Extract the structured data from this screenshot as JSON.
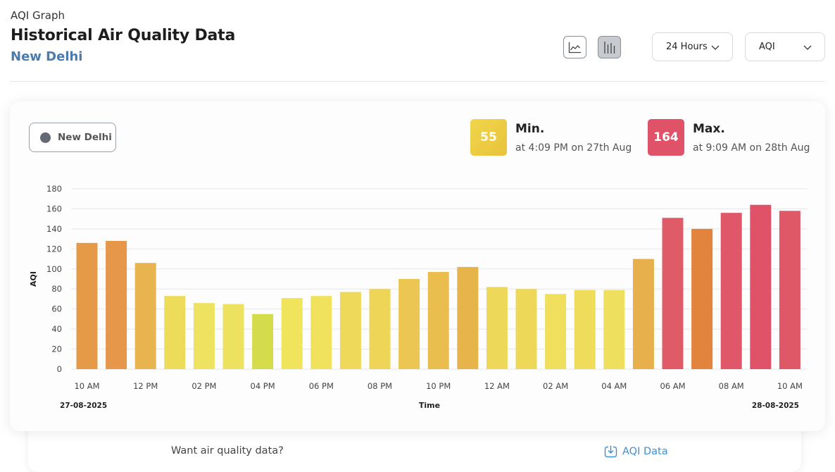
{
  "header": {
    "eyebrow": "AQI Graph",
    "title": "Historical Air Quality Data",
    "city": "New Delhi"
  },
  "toolbar": {
    "chart_types": [
      {
        "icon": "line-chart-icon",
        "active": false
      },
      {
        "icon": "bar-chart-icon",
        "active": true
      }
    ],
    "range_select": "24 Hours",
    "metric_select": "AQI"
  },
  "legend": {
    "label": "New Delhi",
    "color": "#636a73"
  },
  "stats": {
    "min": {
      "value": "55",
      "label": "Min.",
      "sub": "at 4:09 PM on 27th Aug",
      "color": "#ecca40"
    },
    "max": {
      "value": "164",
      "label": "Max.",
      "sub": "at 9:09 AM on 28th Aug",
      "color": "#df5268"
    }
  },
  "chart_data": {
    "type": "bar",
    "title": "",
    "xlabel": "Time",
    "ylabel": "AQI",
    "ylim": [
      0,
      180
    ],
    "yticks": [
      0,
      20,
      40,
      60,
      80,
      100,
      120,
      140,
      160,
      180
    ],
    "grid": true,
    "x_tick_labels": [
      "10 AM",
      "12 PM",
      "02 PM",
      "04 PM",
      "06 PM",
      "08 PM",
      "10 PM",
      "12 AM",
      "02 AM",
      "04 AM",
      "06 AM",
      "08 AM",
      "10 AM"
    ],
    "start_date": "27-08-2025",
    "end_date": "28-08-2025",
    "series": [
      {
        "values": [
          126,
          128,
          106,
          73,
          66,
          65,
          55,
          71,
          73,
          77,
          80,
          90,
          97,
          102,
          82,
          80,
          75,
          79,
          79,
          110,
          151,
          140,
          156,
          164,
          158
        ],
        "colors": [
          "#e59a48",
          "#e6974a",
          "#e8b450",
          "#ecdc5a",
          "#ede360",
          "#ede160",
          "#d4dc4c",
          "#f0e45c",
          "#f0e25c",
          "#eed95a",
          "#eed457",
          "#ebc652",
          "#e9bd4e",
          "#e7b34b",
          "#eed85a",
          "#eed858",
          "#efdf5c",
          "#eedc5a",
          "#eee05e",
          "#e8b04c",
          "#df5b68",
          "#e2833e",
          "#df5768",
          "#df5268",
          "#df5868"
        ]
      }
    ]
  },
  "footer": {
    "prompt": "Want air quality data?",
    "link": "AQI Data"
  }
}
